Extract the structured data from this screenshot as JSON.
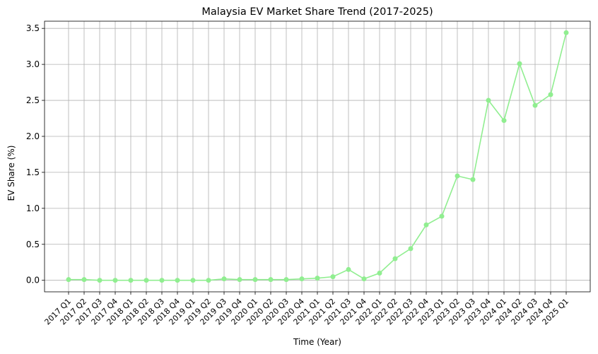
{
  "chart_data": {
    "type": "line",
    "title": "Malaysia EV Market Share Trend (2017-2025)",
    "xlabel": "Time (Year)",
    "ylabel": "EV Share (%)",
    "categories": [
      "2017 Q1",
      "2017 Q2",
      "2017 Q3",
      "2017 Q4",
      "2018 Q1",
      "2018 Q2",
      "2018 Q3",
      "2018 Q4",
      "2019 Q1",
      "2019 Q2",
      "2019 Q3",
      "2019 Q4",
      "2020 Q1",
      "2020 Q2",
      "2020 Q3",
      "2020 Q4",
      "2021 Q1",
      "2021 Q2",
      "2021 Q3",
      "2021 Q4",
      "2022 Q1",
      "2022 Q2",
      "2022 Q3",
      "2022 Q4",
      "2023 Q1",
      "2023 Q2",
      "2023 Q3",
      "2023 Q4",
      "2024 Q1",
      "2024 Q2",
      "2024 Q3",
      "2024 Q4",
      "2025 Q1"
    ],
    "series": [
      {
        "values": [
          0.01,
          0.01,
          0.0,
          0.0,
          0.0,
          0.0,
          0.0,
          0.0,
          0.0,
          0.0,
          0.02,
          0.01,
          0.01,
          0.01,
          0.01,
          0.02,
          0.03,
          0.05,
          0.15,
          0.02,
          0.1,
          0.3,
          0.44,
          0.77,
          0.89,
          1.45,
          1.4,
          2.5,
          2.22,
          3.01,
          2.43,
          2.58,
          3.44
        ],
        "color": "#90ee90"
      }
    ],
    "ylim": [
      -0.16,
      3.6
    ],
    "yticks": [
      "0.0",
      "0.5",
      "1.0",
      "1.5",
      "2.0",
      "2.5",
      "3.0",
      "3.5"
    ],
    "grid": true,
    "marker": "circle"
  }
}
